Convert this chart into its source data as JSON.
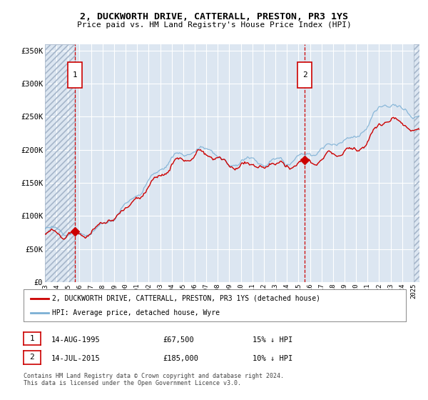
{
  "title": "2, DUCKWORTH DRIVE, CATTERALL, PRESTON, PR3 1YS",
  "subtitle": "Price paid vs. HM Land Registry's House Price Index (HPI)",
  "legend_line1": "2, DUCKWORTH DRIVE, CATTERALL, PRESTON, PR3 1YS (detached house)",
  "legend_line2": "HPI: Average price, detached house, Wyre",
  "annotation1_date": "14-AUG-1995",
  "annotation1_price": "£67,500",
  "annotation1_hpi": "15% ↓ HPI",
  "annotation2_date": "14-JUL-2015",
  "annotation2_price": "£185,000",
  "annotation2_hpi": "10% ↓ HPI",
  "footer1": "Contains HM Land Registry data © Crown copyright and database right 2024.",
  "footer2": "This data is licensed under the Open Government Licence v3.0.",
  "sale1_year": 1995.62,
  "sale1_price": 67500,
  "sale2_year": 2015.54,
  "sale2_price": 185000,
  "red_line_color": "#cc0000",
  "blue_line_color": "#7bafd4",
  "background_color": "#dce6f1",
  "grid_color": "#ffffff",
  "box_color": "#cc0000",
  "ylim": [
    0,
    360000
  ],
  "xlim_start": 1993.0,
  "xlim_end": 2025.5,
  "yticks": [
    0,
    50000,
    100000,
    150000,
    200000,
    250000,
    300000,
    350000
  ],
  "ytick_labels": [
    "£0",
    "£50K",
    "£100K",
    "£150K",
    "£200K",
    "£250K",
    "£300K",
    "£350K"
  ],
  "xtick_years": [
    1993,
    1994,
    1995,
    1996,
    1997,
    1998,
    1999,
    2000,
    2001,
    2002,
    2003,
    2004,
    2005,
    2006,
    2007,
    2008,
    2009,
    2010,
    2011,
    2012,
    2013,
    2014,
    2015,
    2016,
    2017,
    2018,
    2019,
    2020,
    2021,
    2022,
    2023,
    2024,
    2025
  ]
}
